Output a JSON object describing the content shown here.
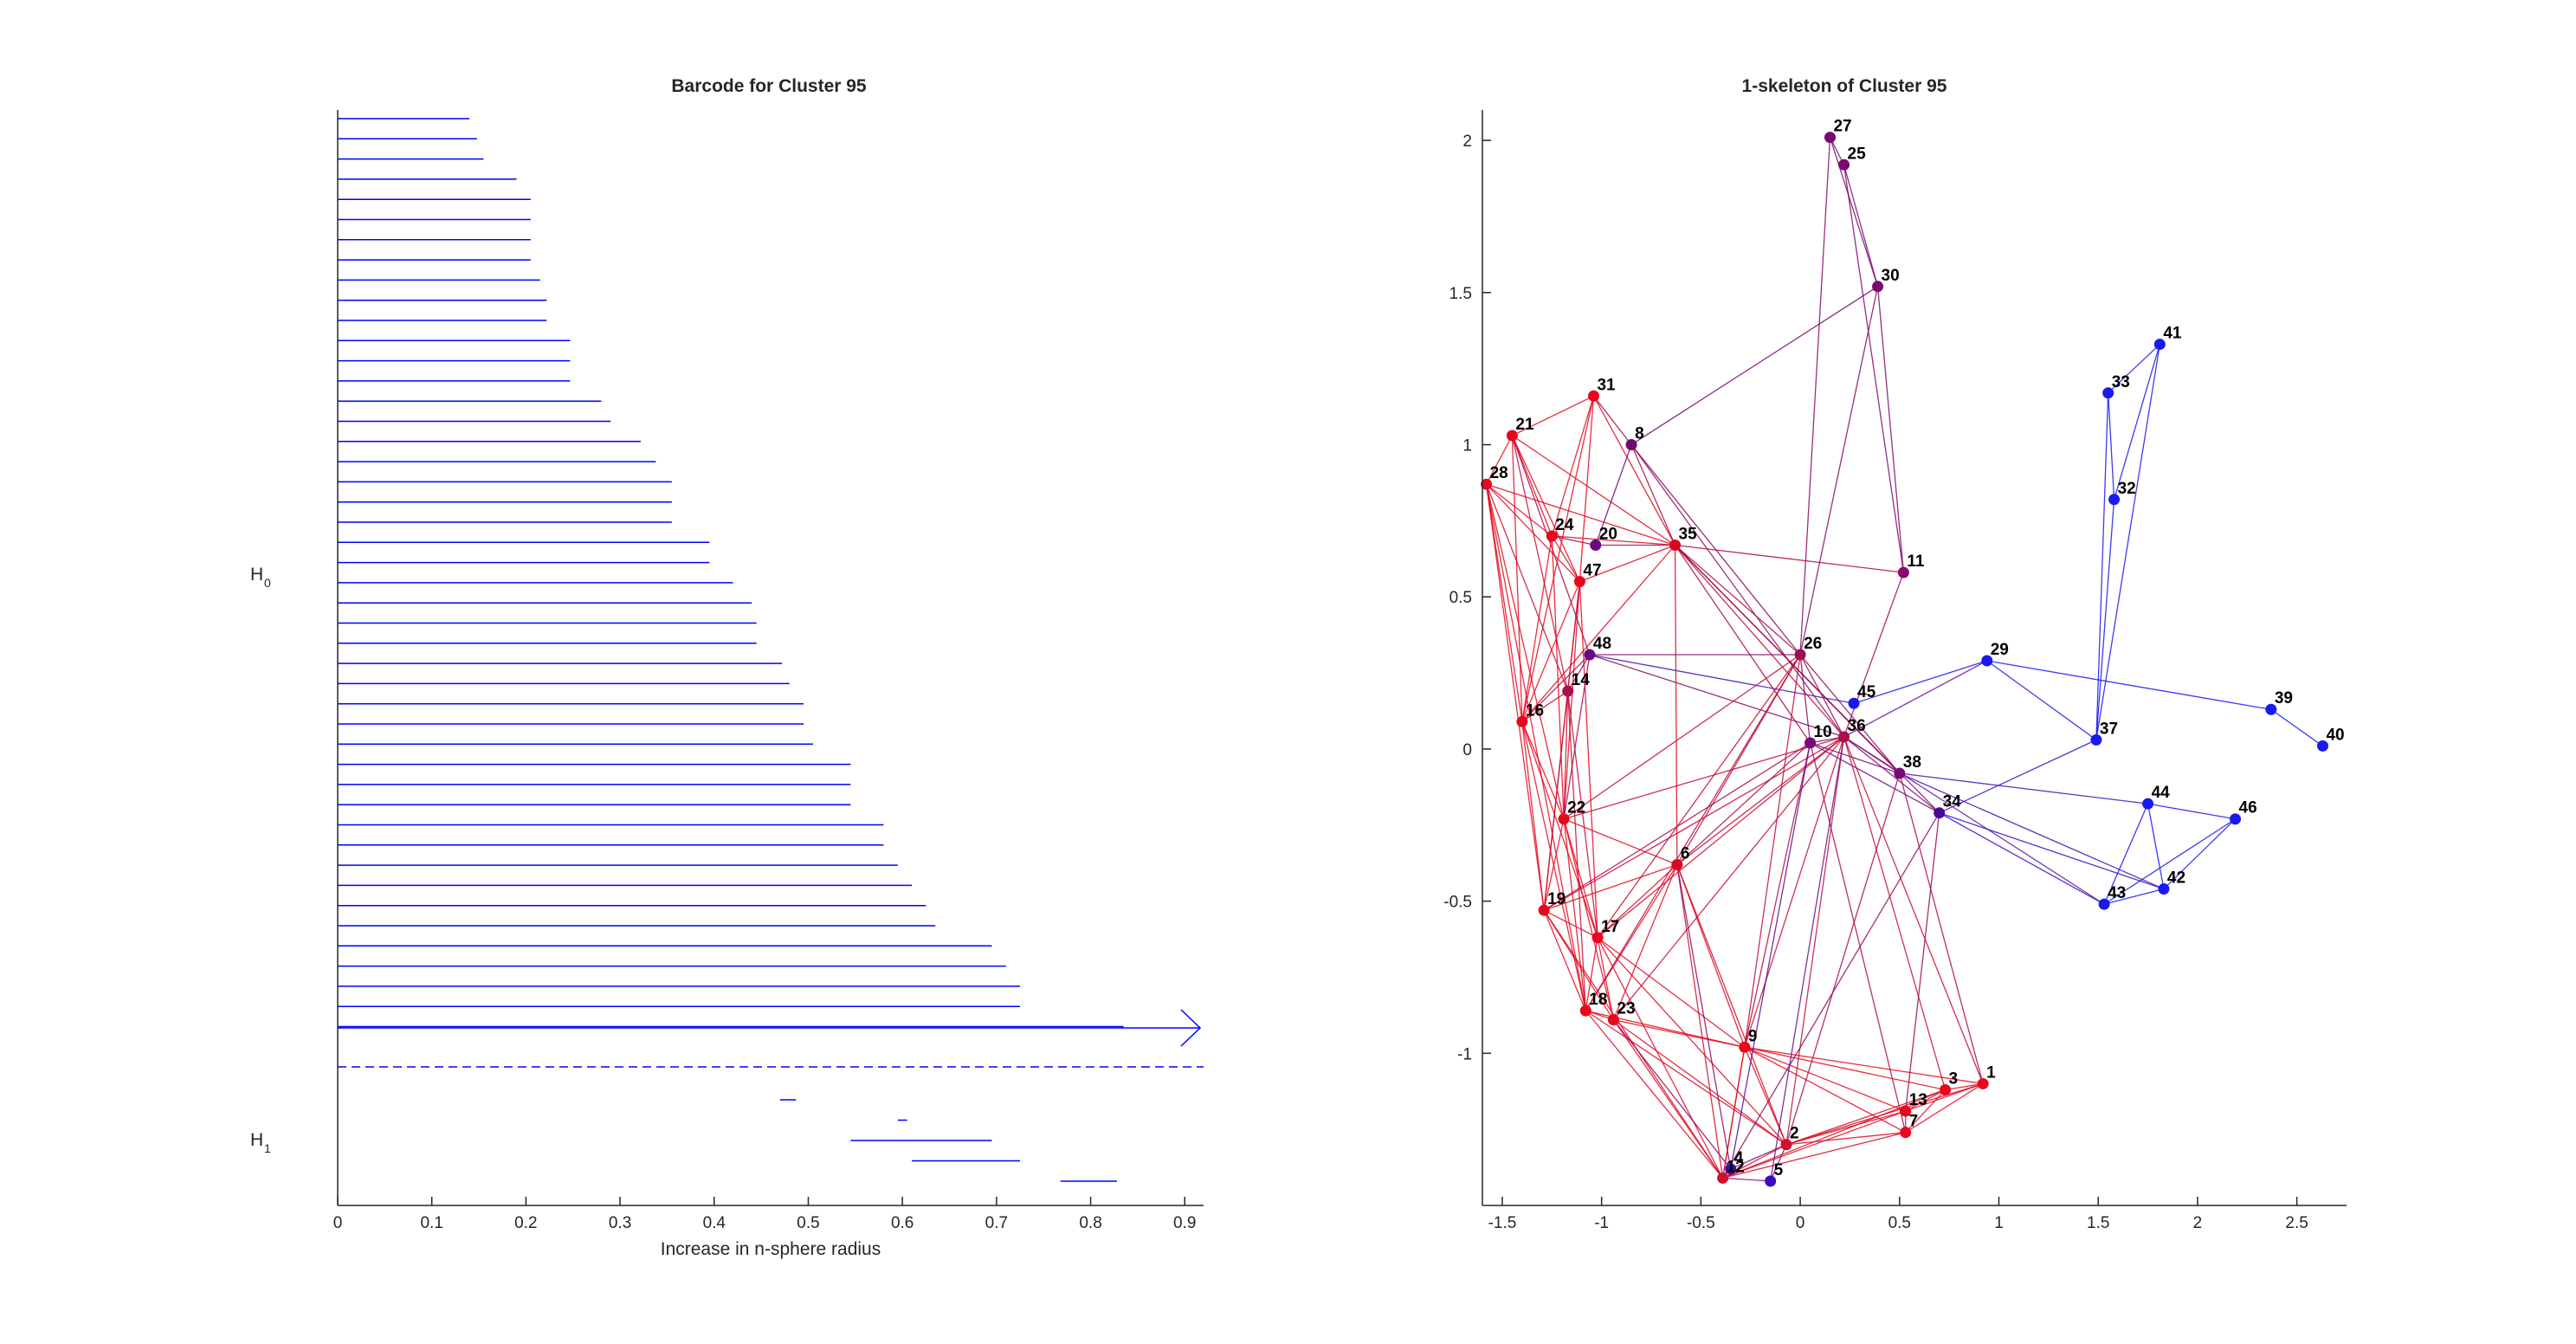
{
  "barcode": {
    "title": "Barcode for Cluster 95",
    "xlabel": "Increase in n-sphere radius",
    "xticks": [
      "0",
      "0.1",
      "0.2",
      "0.3",
      "0.4",
      "0.5",
      "0.6",
      "0.7",
      "0.8",
      "0.9"
    ],
    "h0_label": "H",
    "h0_sub": "0",
    "h1_label": "H",
    "h1_sub": "1"
  },
  "skeleton": {
    "title": "1-skeleton of Cluster 95",
    "xticks": [
      "-1.5",
      "-1",
      "-0.5",
      "0",
      "0.5",
      "1",
      "1.5",
      "2",
      "2.5"
    ],
    "yticks": [
      "2",
      "1.5",
      "1",
      "0.5",
      "0",
      "-0.5",
      "-1"
    ]
  },
  "chart_data": [
    {
      "type": "barcode",
      "title": "Barcode for Cluster 95",
      "xlabel": "Increase in n-sphere radius",
      "xlim": [
        0,
        0.92
      ],
      "bar_color": "#0000ff",
      "h0_bars": [
        [
          0,
          0.14
        ],
        [
          0,
          0.148
        ],
        [
          0,
          0.155
        ],
        [
          0,
          0.19
        ],
        [
          0,
          0.205
        ],
        [
          0,
          0.205
        ],
        [
          0,
          0.205
        ],
        [
          0,
          0.205
        ],
        [
          0,
          0.215
        ],
        [
          0,
          0.222
        ],
        [
          0,
          0.222
        ],
        [
          0,
          0.247
        ],
        [
          0,
          0.247
        ],
        [
          0,
          0.247
        ],
        [
          0,
          0.28
        ],
        [
          0,
          0.29
        ],
        [
          0,
          0.322
        ],
        [
          0,
          0.338
        ],
        [
          0,
          0.355
        ],
        [
          0,
          0.355
        ],
        [
          0,
          0.355
        ],
        [
          0,
          0.395
        ],
        [
          0,
          0.395
        ],
        [
          0,
          0.42
        ],
        [
          0,
          0.44
        ],
        [
          0,
          0.445
        ],
        [
          0,
          0.445
        ],
        [
          0,
          0.472
        ],
        [
          0,
          0.48
        ],
        [
          0,
          0.495
        ],
        [
          0,
          0.495
        ],
        [
          0,
          0.505
        ],
        [
          0,
          0.545
        ],
        [
          0,
          0.545
        ],
        [
          0,
          0.545
        ],
        [
          0,
          0.58
        ],
        [
          0,
          0.58
        ],
        [
          0,
          0.595
        ],
        [
          0,
          0.61
        ],
        [
          0,
          0.625
        ],
        [
          0,
          0.635
        ],
        [
          0,
          0.695
        ],
        [
          0,
          0.71
        ],
        [
          0,
          0.725
        ],
        [
          0,
          0.725
        ],
        [
          0,
          0.835
        ]
      ],
      "h0_infinite_start": 0,
      "h1_bars": [
        [
          0.47,
          0.487
        ],
        [
          0.595,
          0.605
        ],
        [
          0.545,
          0.695
        ],
        [
          0.61,
          0.725
        ],
        [
          0.768,
          0.828
        ]
      ]
    },
    {
      "type": "scatter",
      "title": "1-skeleton of Cluster 95",
      "xlim": [
        -1.6,
        2.75
      ],
      "ylim": [
        -1.5,
        2.1
      ],
      "nodes": [
        {
          "id": "1",
          "x": 0.92,
          "y": -1.1,
          "c": "#e8081e"
        },
        {
          "id": "2",
          "x": -0.07,
          "y": -1.3,
          "c": "#d0102e"
        },
        {
          "id": "3",
          "x": 0.73,
          "y": -1.12,
          "c": "#e8081e"
        },
        {
          "id": "4",
          "x": -0.35,
          "y": -1.38,
          "c": "#3a0aa8"
        },
        {
          "id": "5",
          "x": -0.15,
          "y": -1.42,
          "c": "#3a0ac0"
        },
        {
          "id": "6",
          "x": -0.62,
          "y": -0.38,
          "c": "#d8081e"
        },
        {
          "id": "7",
          "x": 0.53,
          "y": -1.26,
          "c": "#e8081e"
        },
        {
          "id": "8",
          "x": -0.85,
          "y": 1.0,
          "c": "#700a70"
        },
        {
          "id": "9",
          "x": -0.28,
          "y": -0.98,
          "c": "#e8081e"
        },
        {
          "id": "10",
          "x": 0.05,
          "y": 0.02,
          "c": "#780a78"
        },
        {
          "id": "11",
          "x": 0.52,
          "y": 0.58,
          "c": "#880a6a"
        },
        {
          "id": "12",
          "x": -0.39,
          "y": -1.41,
          "c": "#d0102e"
        },
        {
          "id": "13",
          "x": 0.53,
          "y": -1.19,
          "c": "#e8081e"
        },
        {
          "id": "14",
          "x": -1.17,
          "y": 0.19,
          "c": "#a8104a"
        },
        {
          "id": "16",
          "x": -1.4,
          "y": 0.09,
          "c": "#e8081e"
        },
        {
          "id": "17",
          "x": -1.02,
          "y": -0.62,
          "c": "#e8081e"
        },
        {
          "id": "18",
          "x": -1.08,
          "y": -0.86,
          "c": "#e8081e"
        },
        {
          "id": "19",
          "x": -1.29,
          "y": -0.53,
          "c": "#e8081e"
        },
        {
          "id": "20",
          "x": -1.03,
          "y": 0.67,
          "c": "#6a0a80"
        },
        {
          "id": "21",
          "x": -1.45,
          "y": 1.03,
          "c": "#e8081e"
        },
        {
          "id": "22",
          "x": -1.19,
          "y": -0.23,
          "c": "#e8081e"
        },
        {
          "id": "23",
          "x": -0.94,
          "y": -0.89,
          "c": "#e8081e"
        },
        {
          "id": "24",
          "x": -1.25,
          "y": 0.7,
          "c": "#e8081e"
        },
        {
          "id": "25",
          "x": 0.22,
          "y": 1.92,
          "c": "#780a70"
        },
        {
          "id": "26",
          "x": 0.0,
          "y": 0.31,
          "c": "#9a1050"
        },
        {
          "id": "27",
          "x": 0.15,
          "y": 2.01,
          "c": "#780a70"
        },
        {
          "id": "28",
          "x": -1.58,
          "y": 0.87,
          "c": "#e8081e"
        },
        {
          "id": "29",
          "x": 0.94,
          "y": 0.29,
          "c": "#1a1aee"
        },
        {
          "id": "30",
          "x": 0.39,
          "y": 1.52,
          "c": "#780a70"
        },
        {
          "id": "31",
          "x": -1.04,
          "y": 1.16,
          "c": "#e8081e"
        },
        {
          "id": "32",
          "x": 1.58,
          "y": 0.82,
          "c": "#1a1aee"
        },
        {
          "id": "33",
          "x": 1.55,
          "y": 1.17,
          "c": "#1a1aee"
        },
        {
          "id": "34",
          "x": 0.7,
          "y": -0.21,
          "c": "#4a0a98"
        },
        {
          "id": "35",
          "x": -0.63,
          "y": 0.67,
          "c": "#d8081e"
        },
        {
          "id": "36",
          "x": 0.22,
          "y": 0.04,
          "c": "#a8104a"
        },
        {
          "id": "37",
          "x": 1.49,
          "y": 0.03,
          "c": "#1a1aee"
        },
        {
          "id": "38",
          "x": 0.5,
          "y": -0.08,
          "c": "#780a78"
        },
        {
          "id": "39",
          "x": 2.37,
          "y": 0.13,
          "c": "#1a1aee"
        },
        {
          "id": "40",
          "x": 2.63,
          "y": 0.01,
          "c": "#1a1aee"
        },
        {
          "id": "41",
          "x": 1.81,
          "y": 1.33,
          "c": "#1a1aee"
        },
        {
          "id": "42",
          "x": 1.83,
          "y": -0.46,
          "c": "#1a1aee"
        },
        {
          "id": "43",
          "x": 1.53,
          "y": -0.51,
          "c": "#1a1aee"
        },
        {
          "id": "44",
          "x": 1.75,
          "y": -0.18,
          "c": "#1a1aee"
        },
        {
          "id": "45",
          "x": 0.27,
          "y": 0.15,
          "c": "#1a1aee"
        },
        {
          "id": "46",
          "x": 2.19,
          "y": -0.23,
          "c": "#1a1aee"
        },
        {
          "id": "47",
          "x": -1.11,
          "y": 0.55,
          "c": "#e8081e"
        },
        {
          "id": "48",
          "x": -1.06,
          "y": 0.31,
          "c": "#6a0a80"
        }
      ],
      "edges": [
        [
          "27",
          "25"
        ],
        [
          "27",
          "30"
        ],
        [
          "25",
          "30"
        ],
        [
          "25",
          "11"
        ],
        [
          "30",
          "11"
        ],
        [
          "30",
          "8"
        ],
        [
          "30",
          "26"
        ],
        [
          "27",
          "26"
        ],
        [
          "41",
          "33"
        ],
        [
          "41",
          "32"
        ],
        [
          "33",
          "32"
        ],
        [
          "33",
          "37"
        ],
        [
          "41",
          "37"
        ],
        [
          "32",
          "37"
        ],
        [
          "29",
          "37"
        ],
        [
          "29",
          "45"
        ],
        [
          "29",
          "39"
        ],
        [
          "39",
          "40"
        ],
        [
          "37",
          "34"
        ],
        [
          "29",
          "36"
        ],
        [
          "48",
          "45"
        ],
        [
          "44",
          "46"
        ],
        [
          "44",
          "42"
        ],
        [
          "46",
          "42"
        ],
        [
          "46",
          "43"
        ],
        [
          "44",
          "43"
        ],
        [
          "42",
          "43"
        ],
        [
          "38",
          "44"
        ],
        [
          "34",
          "43"
        ],
        [
          "34",
          "42"
        ],
        [
          "38",
          "42"
        ],
        [
          "36",
          "43"
        ],
        [
          "36",
          "38"
        ],
        [
          "10",
          "38"
        ],
        [
          "36",
          "34"
        ],
        [
          "10",
          "34"
        ],
        [
          "8",
          "31"
        ],
        [
          "8",
          "20"
        ],
        [
          "8",
          "35"
        ],
        [
          "8",
          "36"
        ],
        [
          "8",
          "26"
        ],
        [
          "35",
          "11"
        ],
        [
          "20",
          "35"
        ],
        [
          "48",
          "36"
        ],
        [
          "35",
          "36"
        ],
        [
          "35",
          "10"
        ],
        [
          "35",
          "38"
        ],
        [
          "26",
          "38"
        ],
        [
          "26",
          "36"
        ],
        [
          "35",
          "26"
        ],
        [
          "48",
          "26"
        ],
        [
          "21",
          "31"
        ],
        [
          "21",
          "28"
        ],
        [
          "21",
          "24"
        ],
        [
          "21",
          "35"
        ],
        [
          "21",
          "47"
        ],
        [
          "21",
          "16"
        ],
        [
          "21",
          "14"
        ],
        [
          "21",
          "48"
        ],
        [
          "28",
          "24"
        ],
        [
          "28",
          "47"
        ],
        [
          "28",
          "16"
        ],
        [
          "28",
          "22"
        ],
        [
          "28",
          "19"
        ],
        [
          "28",
          "14"
        ],
        [
          "28",
          "35"
        ],
        [
          "28",
          "18"
        ],
        [
          "31",
          "24"
        ],
        [
          "31",
          "35"
        ],
        [
          "31",
          "47"
        ],
        [
          "31",
          "16"
        ],
        [
          "24",
          "35"
        ],
        [
          "24",
          "47"
        ],
        [
          "24",
          "20"
        ],
        [
          "24",
          "16"
        ],
        [
          "24",
          "22"
        ],
        [
          "47",
          "16"
        ],
        [
          "47",
          "22"
        ],
        [
          "47",
          "19"
        ],
        [
          "47",
          "35"
        ],
        [
          "47",
          "14"
        ],
        [
          "47",
          "17"
        ],
        [
          "16",
          "22"
        ],
        [
          "16",
          "19"
        ],
        [
          "16",
          "14"
        ],
        [
          "16",
          "17"
        ],
        [
          "16",
          "18"
        ],
        [
          "16",
          "35"
        ],
        [
          "14",
          "22"
        ],
        [
          "14",
          "19"
        ],
        [
          "14",
          "17"
        ],
        [
          "14",
          "18"
        ],
        [
          "48",
          "22"
        ],
        [
          "48",
          "14"
        ],
        [
          "48",
          "16"
        ],
        [
          "22",
          "19"
        ],
        [
          "22",
          "17"
        ],
        [
          "22",
          "18"
        ],
        [
          "22",
          "23"
        ],
        [
          "22",
          "6"
        ],
        [
          "22",
          "36"
        ],
        [
          "22",
          "26"
        ],
        [
          "19",
          "17"
        ],
        [
          "19",
          "18"
        ],
        [
          "19",
          "6"
        ],
        [
          "19",
          "23"
        ],
        [
          "19",
          "36"
        ],
        [
          "19",
          "12"
        ],
        [
          "19",
          "10"
        ],
        [
          "17",
          "18"
        ],
        [
          "17",
          "23"
        ],
        [
          "17",
          "6"
        ],
        [
          "17",
          "9"
        ],
        [
          "17",
          "2"
        ],
        [
          "17",
          "36"
        ],
        [
          "17",
          "12"
        ],
        [
          "17",
          "26"
        ],
        [
          "18",
          "23"
        ],
        [
          "18",
          "6"
        ],
        [
          "18",
          "9"
        ],
        [
          "18",
          "12"
        ],
        [
          "18",
          "2"
        ],
        [
          "23",
          "6"
        ],
        [
          "23",
          "9"
        ],
        [
          "23",
          "2"
        ],
        [
          "23",
          "12"
        ],
        [
          "23",
          "4"
        ],
        [
          "23",
          "36"
        ],
        [
          "6",
          "9"
        ],
        [
          "6",
          "2"
        ],
        [
          "6",
          "36"
        ],
        [
          "6",
          "10"
        ],
        [
          "6",
          "26"
        ],
        [
          "6",
          "12"
        ],
        [
          "6",
          "4"
        ],
        [
          "6",
          "35"
        ],
        [
          "9",
          "2"
        ],
        [
          "9",
          "1"
        ],
        [
          "9",
          "3"
        ],
        [
          "9",
          "13"
        ],
        [
          "9",
          "12"
        ],
        [
          "9",
          "36"
        ],
        [
          "9",
          "10"
        ],
        [
          "9",
          "26"
        ],
        [
          "9",
          "7"
        ],
        [
          "2",
          "12"
        ],
        [
          "2",
          "4"
        ],
        [
          "2",
          "5"
        ],
        [
          "2",
          "13"
        ],
        [
          "2",
          "7"
        ],
        [
          "2",
          "3"
        ],
        [
          "2",
          "1"
        ],
        [
          "2",
          "36"
        ],
        [
          "2",
          "38"
        ],
        [
          "12",
          "4"
        ],
        [
          "12",
          "5"
        ],
        [
          "12",
          "7"
        ],
        [
          "12",
          "13"
        ],
        [
          "12",
          "3"
        ],
        [
          "12",
          "9"
        ],
        [
          "13",
          "7"
        ],
        [
          "13",
          "3"
        ],
        [
          "13",
          "1"
        ],
        [
          "7",
          "3"
        ],
        [
          "7",
          "1"
        ],
        [
          "3",
          "1"
        ],
        [
          "1",
          "36"
        ],
        [
          "3",
          "36"
        ],
        [
          "1",
          "38"
        ],
        [
          "7",
          "10"
        ],
        [
          "13",
          "34"
        ],
        [
          "10",
          "36"
        ],
        [
          "10",
          "26"
        ],
        [
          "11",
          "36"
        ],
        [
          "12",
          "34"
        ],
        [
          "35",
          "34"
        ],
        [
          "4",
          "10"
        ],
        [
          "5",
          "36"
        ],
        [
          "18",
          "26"
        ]
      ]
    }
  ]
}
